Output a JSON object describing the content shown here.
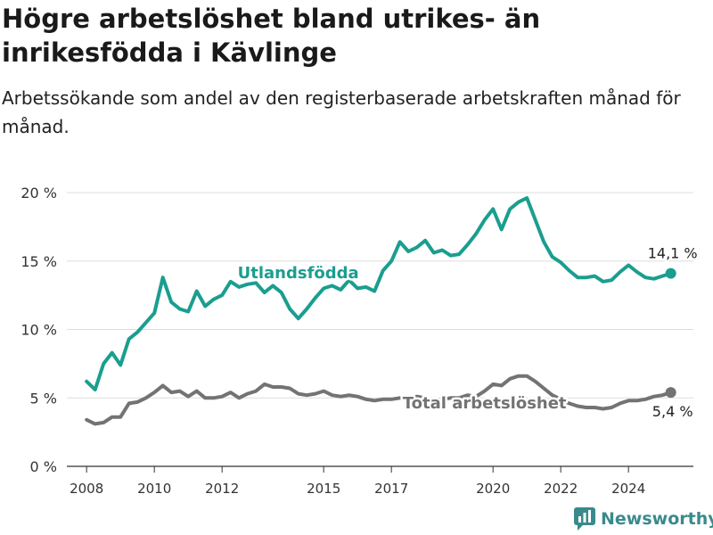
{
  "header": {
    "title": "Högre arbetslöshet bland utrikes- än inrikesfödda i Kävlinge",
    "subtitle": "Arbetssökande som andel av den registerbaserade arbetskraften månad för månad."
  },
  "brand": {
    "name": "Newsworthy"
  },
  "colors": {
    "foreign": "#1a9e8f",
    "total": "#737373",
    "grid": "#dddddd",
    "axis": "#333333",
    "brand": "#3a8a8c"
  },
  "chart_data": {
    "type": "line",
    "title": "Högre arbetslöshet bland utrikes- än inrikesfödda i Kävlinge",
    "subtitle": "Arbetssökande som andel av den registerbaserade arbetskraften månad för månad.",
    "x_ticks": [
      "2008",
      "2010",
      "2012",
      "2015",
      "2017",
      "2020",
      "2022",
      "2024"
    ],
    "y_ticks": [
      "0 %",
      "5 %",
      "10 %",
      "15 %",
      "20 %"
    ],
    "ylim": [
      0,
      20
    ],
    "xlim": [
      "2007-06",
      "2025-12"
    ],
    "grid": true,
    "series": [
      {
        "name": "Utlandsfödda",
        "color": "#1a9e8f",
        "end_label": "14,1 %",
        "points": [
          [
            "2008-01",
            6.2
          ],
          [
            "2008-04",
            5.6
          ],
          [
            "2008-07",
            7.5
          ],
          [
            "2008-10",
            8.3
          ],
          [
            "2009-01",
            7.4
          ],
          [
            "2009-04",
            9.3
          ],
          [
            "2009-07",
            9.8
          ],
          [
            "2009-10",
            10.5
          ],
          [
            "2010-01",
            11.2
          ],
          [
            "2010-04",
            13.8
          ],
          [
            "2010-07",
            12.0
          ],
          [
            "2010-10",
            11.5
          ],
          [
            "2011-01",
            11.3
          ],
          [
            "2011-04",
            12.8
          ],
          [
            "2011-07",
            11.7
          ],
          [
            "2011-10",
            12.2
          ],
          [
            "2012-01",
            12.5
          ],
          [
            "2012-04",
            13.5
          ],
          [
            "2012-07",
            13.1
          ],
          [
            "2012-10",
            13.3
          ],
          [
            "2013-01",
            13.4
          ],
          [
            "2013-04",
            12.7
          ],
          [
            "2013-07",
            13.2
          ],
          [
            "2013-10",
            12.7
          ],
          [
            "2014-01",
            11.5
          ],
          [
            "2014-04",
            10.8
          ],
          [
            "2014-07",
            11.5
          ],
          [
            "2014-10",
            12.3
          ],
          [
            "2015-01",
            13.0
          ],
          [
            "2015-04",
            13.2
          ],
          [
            "2015-07",
            12.9
          ],
          [
            "2015-10",
            13.6
          ],
          [
            "2016-01",
            13.0
          ],
          [
            "2016-04",
            13.1
          ],
          [
            "2016-07",
            12.8
          ],
          [
            "2016-10",
            14.3
          ],
          [
            "2017-01",
            15.0
          ],
          [
            "2017-04",
            16.4
          ],
          [
            "2017-07",
            15.7
          ],
          [
            "2017-10",
            16.0
          ],
          [
            "2018-01",
            16.5
          ],
          [
            "2018-04",
            15.6
          ],
          [
            "2018-07",
            15.8
          ],
          [
            "2018-10",
            15.4
          ],
          [
            "2019-01",
            15.5
          ],
          [
            "2019-04",
            16.2
          ],
          [
            "2019-07",
            17.0
          ],
          [
            "2019-10",
            18.0
          ],
          [
            "2020-01",
            18.8
          ],
          [
            "2020-04",
            17.3
          ],
          [
            "2020-07",
            18.8
          ],
          [
            "2020-10",
            19.3
          ],
          [
            "2021-01",
            19.6
          ],
          [
            "2021-04",
            18.0
          ],
          [
            "2021-07",
            16.4
          ],
          [
            "2021-10",
            15.3
          ],
          [
            "2022-01",
            14.9
          ],
          [
            "2022-04",
            14.3
          ],
          [
            "2022-07",
            13.8
          ],
          [
            "2022-10",
            13.8
          ],
          [
            "2023-01",
            13.9
          ],
          [
            "2023-04",
            13.5
          ],
          [
            "2023-07",
            13.6
          ],
          [
            "2023-10",
            14.2
          ],
          [
            "2024-01",
            14.7
          ],
          [
            "2024-04",
            14.2
          ],
          [
            "2024-07",
            13.8
          ],
          [
            "2024-10",
            13.7
          ],
          [
            "2025-01",
            13.9
          ],
          [
            "2025-04",
            14.1
          ]
        ]
      },
      {
        "name": "Total arbetslöshet",
        "color": "#737373",
        "end_label": "5,4 %",
        "points": [
          [
            "2008-01",
            3.4
          ],
          [
            "2008-04",
            3.1
          ],
          [
            "2008-07",
            3.2
          ],
          [
            "2008-10",
            3.6
          ],
          [
            "2009-01",
            3.6
          ],
          [
            "2009-04",
            4.6
          ],
          [
            "2009-07",
            4.7
          ],
          [
            "2009-10",
            5.0
          ],
          [
            "2010-01",
            5.4
          ],
          [
            "2010-04",
            5.9
          ],
          [
            "2010-07",
            5.4
          ],
          [
            "2010-10",
            5.5
          ],
          [
            "2011-01",
            5.1
          ],
          [
            "2011-04",
            5.5
          ],
          [
            "2011-07",
            5.0
          ],
          [
            "2011-10",
            5.0
          ],
          [
            "2012-01",
            5.1
          ],
          [
            "2012-04",
            5.4
          ],
          [
            "2012-07",
            5.0
          ],
          [
            "2012-10",
            5.3
          ],
          [
            "2013-01",
            5.5
          ],
          [
            "2013-04",
            6.0
          ],
          [
            "2013-07",
            5.8
          ],
          [
            "2013-10",
            5.8
          ],
          [
            "2014-01",
            5.7
          ],
          [
            "2014-04",
            5.3
          ],
          [
            "2014-07",
            5.2
          ],
          [
            "2014-10",
            5.3
          ],
          [
            "2015-01",
            5.5
          ],
          [
            "2015-04",
            5.2
          ],
          [
            "2015-07",
            5.1
          ],
          [
            "2015-10",
            5.2
          ],
          [
            "2016-01",
            5.1
          ],
          [
            "2016-04",
            4.9
          ],
          [
            "2016-07",
            4.8
          ],
          [
            "2016-10",
            4.9
          ],
          [
            "2017-01",
            4.9
          ],
          [
            "2017-04",
            5.0
          ],
          [
            "2017-07",
            4.9
          ],
          [
            "2017-10",
            5.1
          ],
          [
            "2018-01",
            5.0
          ],
          [
            "2018-04",
            4.8
          ],
          [
            "2018-07",
            4.9
          ],
          [
            "2018-10",
            5.0
          ],
          [
            "2019-01",
            5.0
          ],
          [
            "2019-04",
            5.2
          ],
          [
            "2019-07",
            5.1
          ],
          [
            "2019-10",
            5.5
          ],
          [
            "2020-01",
            6.0
          ],
          [
            "2020-04",
            5.9
          ],
          [
            "2020-07",
            6.4
          ],
          [
            "2020-10",
            6.6
          ],
          [
            "2021-01",
            6.6
          ],
          [
            "2021-04",
            6.2
          ],
          [
            "2021-07",
            5.7
          ],
          [
            "2021-10",
            5.2
          ],
          [
            "2022-01",
            4.9
          ],
          [
            "2022-04",
            4.6
          ],
          [
            "2022-07",
            4.4
          ],
          [
            "2022-10",
            4.3
          ],
          [
            "2023-01",
            4.3
          ],
          [
            "2023-04",
            4.2
          ],
          [
            "2023-07",
            4.3
          ],
          [
            "2023-10",
            4.6
          ],
          [
            "2024-01",
            4.8
          ],
          [
            "2024-04",
            4.8
          ],
          [
            "2024-07",
            4.9
          ],
          [
            "2024-10",
            5.1
          ],
          [
            "2025-01",
            5.2
          ],
          [
            "2025-04",
            5.4
          ]
        ]
      }
    ]
  }
}
